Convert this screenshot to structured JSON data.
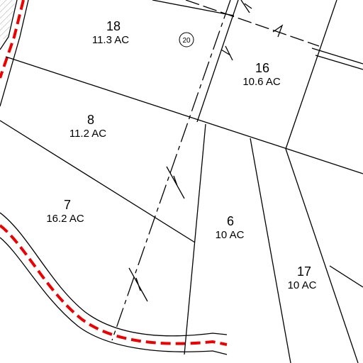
{
  "parcels": [
    {
      "number": "18",
      "area": "11.3 AC"
    },
    {
      "number": "16",
      "area": "10.6 AC"
    },
    {
      "number": "8",
      "area": "11.2 AC"
    },
    {
      "number": "7",
      "area": "16.2 AC"
    },
    {
      "number": "6",
      "area": "10 AC"
    },
    {
      "number": "17",
      "area": "10 AC"
    }
  ],
  "markers": [
    {
      "label": "20"
    }
  ]
}
